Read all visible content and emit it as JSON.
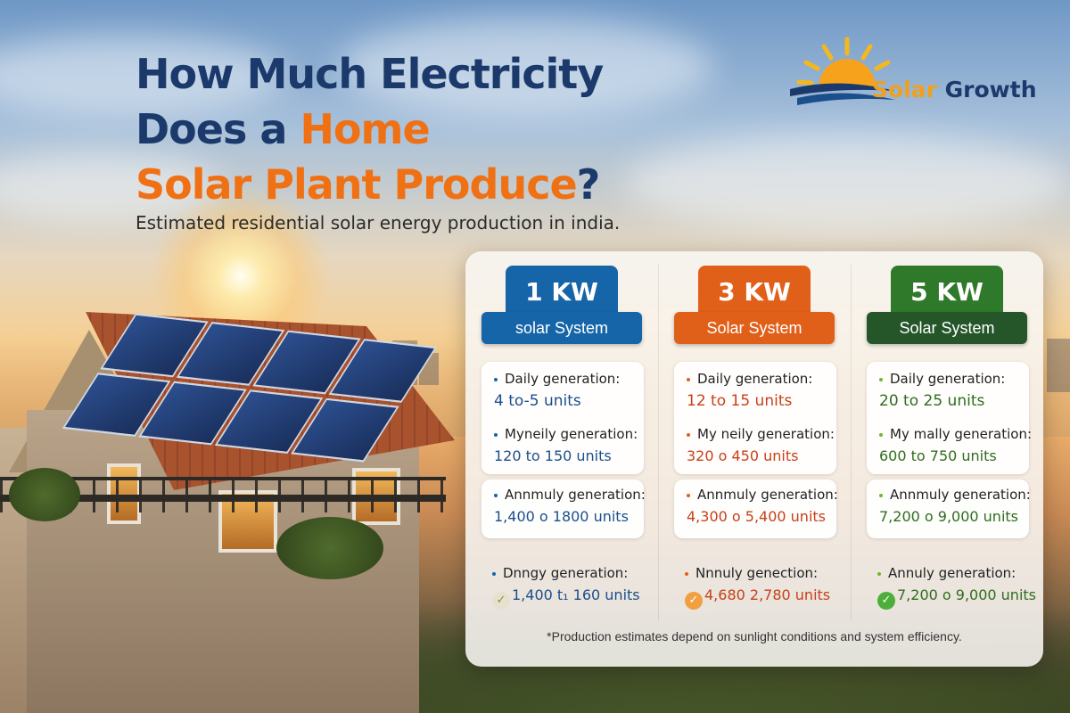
{
  "title": {
    "line1": "How Much Electricity",
    "line2a": "Does a ",
    "line2b": "Home",
    "line3a": "Solar Plant Produce",
    "line3b": "?"
  },
  "subtitle": "Estimated residential solar energy production in india.",
  "logo": {
    "text_a": "Solar",
    "text_b": " Growth",
    "icon": "sun-waves-icon"
  },
  "colors": {
    "navy": "#1b3a6b",
    "orange": "#f07014",
    "blue": "#1665a8",
    "orange_tag": "#e0601a",
    "green": "#2f7a2a",
    "blue_val": "#1b4f8c",
    "orange_val": "#c8401a",
    "green_val": "#2f6d1e"
  },
  "systems": [
    {
      "size": "1 KW",
      "label": "solar System",
      "rows": [
        {
          "label": "Daily generation:",
          "value": "4 to-5 units"
        },
        {
          "label": "Myneily generation:",
          "value": "120 to 150 units"
        },
        {
          "label": "Annmuly generation:",
          "value": "1,400 o 1800 units"
        },
        {
          "label": "Dnngy generation:",
          "value": "1,400 t₁ 160 units"
        }
      ]
    },
    {
      "size": "3 KW",
      "label": "Solar System",
      "rows": [
        {
          "label": "Daily generation:",
          "value": "12 to 15 units"
        },
        {
          "label": "My neily generation:",
          "value": "320 o 450 units"
        },
        {
          "label": "Annmuly generation:",
          "value": "4,300 o 5,400 units"
        },
        {
          "label": "Nnnuly genection:",
          "value": "4,680 2,780 units"
        }
      ]
    },
    {
      "size": "5 KW",
      "label": "Solar System",
      "rows": [
        {
          "label": "Daily generation:",
          "value": "20 to 25 units"
        },
        {
          "label": "My mally generation:",
          "value": "600 to 750 units"
        },
        {
          "label": "Annmuly generation:",
          "value": "7,200 o 9,000 units"
        },
        {
          "label": "Annuly generation:",
          "value": "7,200 o 9,000 units"
        }
      ]
    }
  ],
  "footnote": "*Production estimates depend on sunlight conditions and system efficiency."
}
